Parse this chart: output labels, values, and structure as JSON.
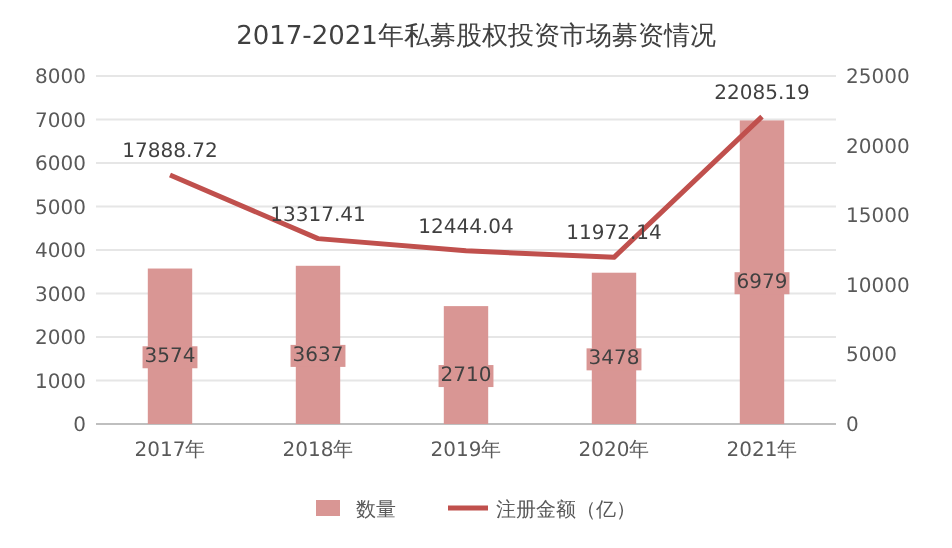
{
  "chart_data": {
    "type": "bar",
    "title": "2017-2021年私募股权投资市场募资情况",
    "categories": [
      "2017年",
      "2018年",
      "2019年",
      "2020年",
      "2021年"
    ],
    "series": [
      {
        "name": "数量",
        "color": "#d99694",
        "values": [
          3574,
          3637,
          2710,
          3478,
          6979
        ]
      },
      {
        "name": "注册金额（亿）",
        "type": "line",
        "axis": "y2",
        "color": "#c0504d",
        "values": [
          17888.72,
          13317.41,
          12444.04,
          11972.14,
          22085.19
        ]
      }
    ],
    "ylim": [
      0,
      8000
    ],
    "yticks": [
      0,
      1000,
      2000,
      3000,
      4000,
      5000,
      6000,
      7000,
      8000
    ],
    "y2lim": [
      0,
      25000
    ],
    "y2ticks": [
      0,
      5000,
      10000,
      15000,
      20000,
      25000
    ],
    "data_labels": true,
    "grid": "y",
    "legend": "bottom"
  }
}
